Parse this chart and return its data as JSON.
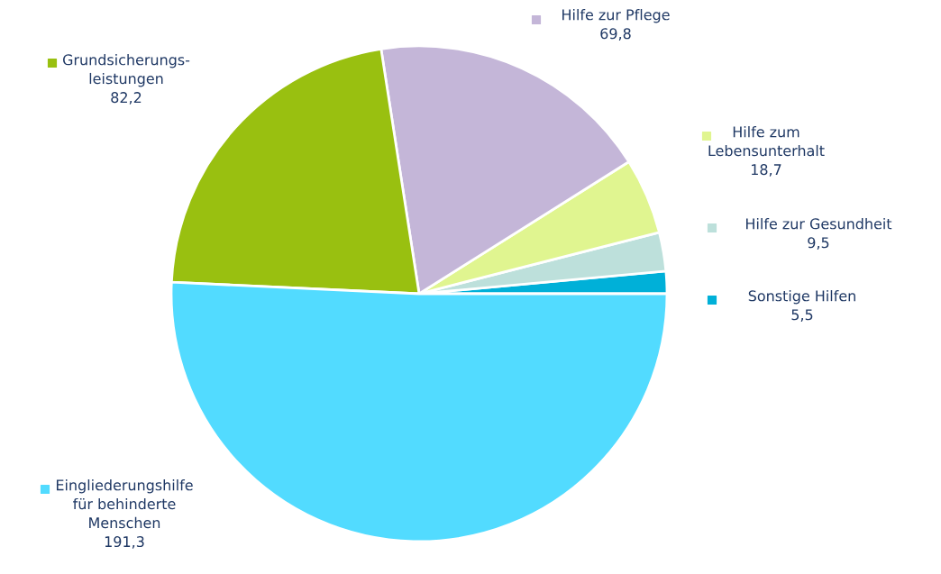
{
  "chart_data": {
    "type": "pie",
    "categories": [
      "Sonstige Hilfen",
      "Hilfe zur Gesundheit",
      "Hilfe zum\nLebensunterhalt",
      "Hilfe zur Pflege",
      "Grundsicherungs-\nleistungen",
      "Eingliederungshilfe\nfür behinderte\nMenschen"
    ],
    "values": [
      5.5,
      9.5,
      18.7,
      69.8,
      82.2,
      191.3
    ],
    "value_labels": [
      "5,5",
      "9,5",
      "18,7",
      "69,8",
      "82,2",
      "191,3"
    ],
    "colors": [
      "#00b0d8",
      "#bde0db",
      "#e0f590",
      "#c4b6d8",
      "#99c010",
      "#52dbff"
    ],
    "legend": "right"
  }
}
